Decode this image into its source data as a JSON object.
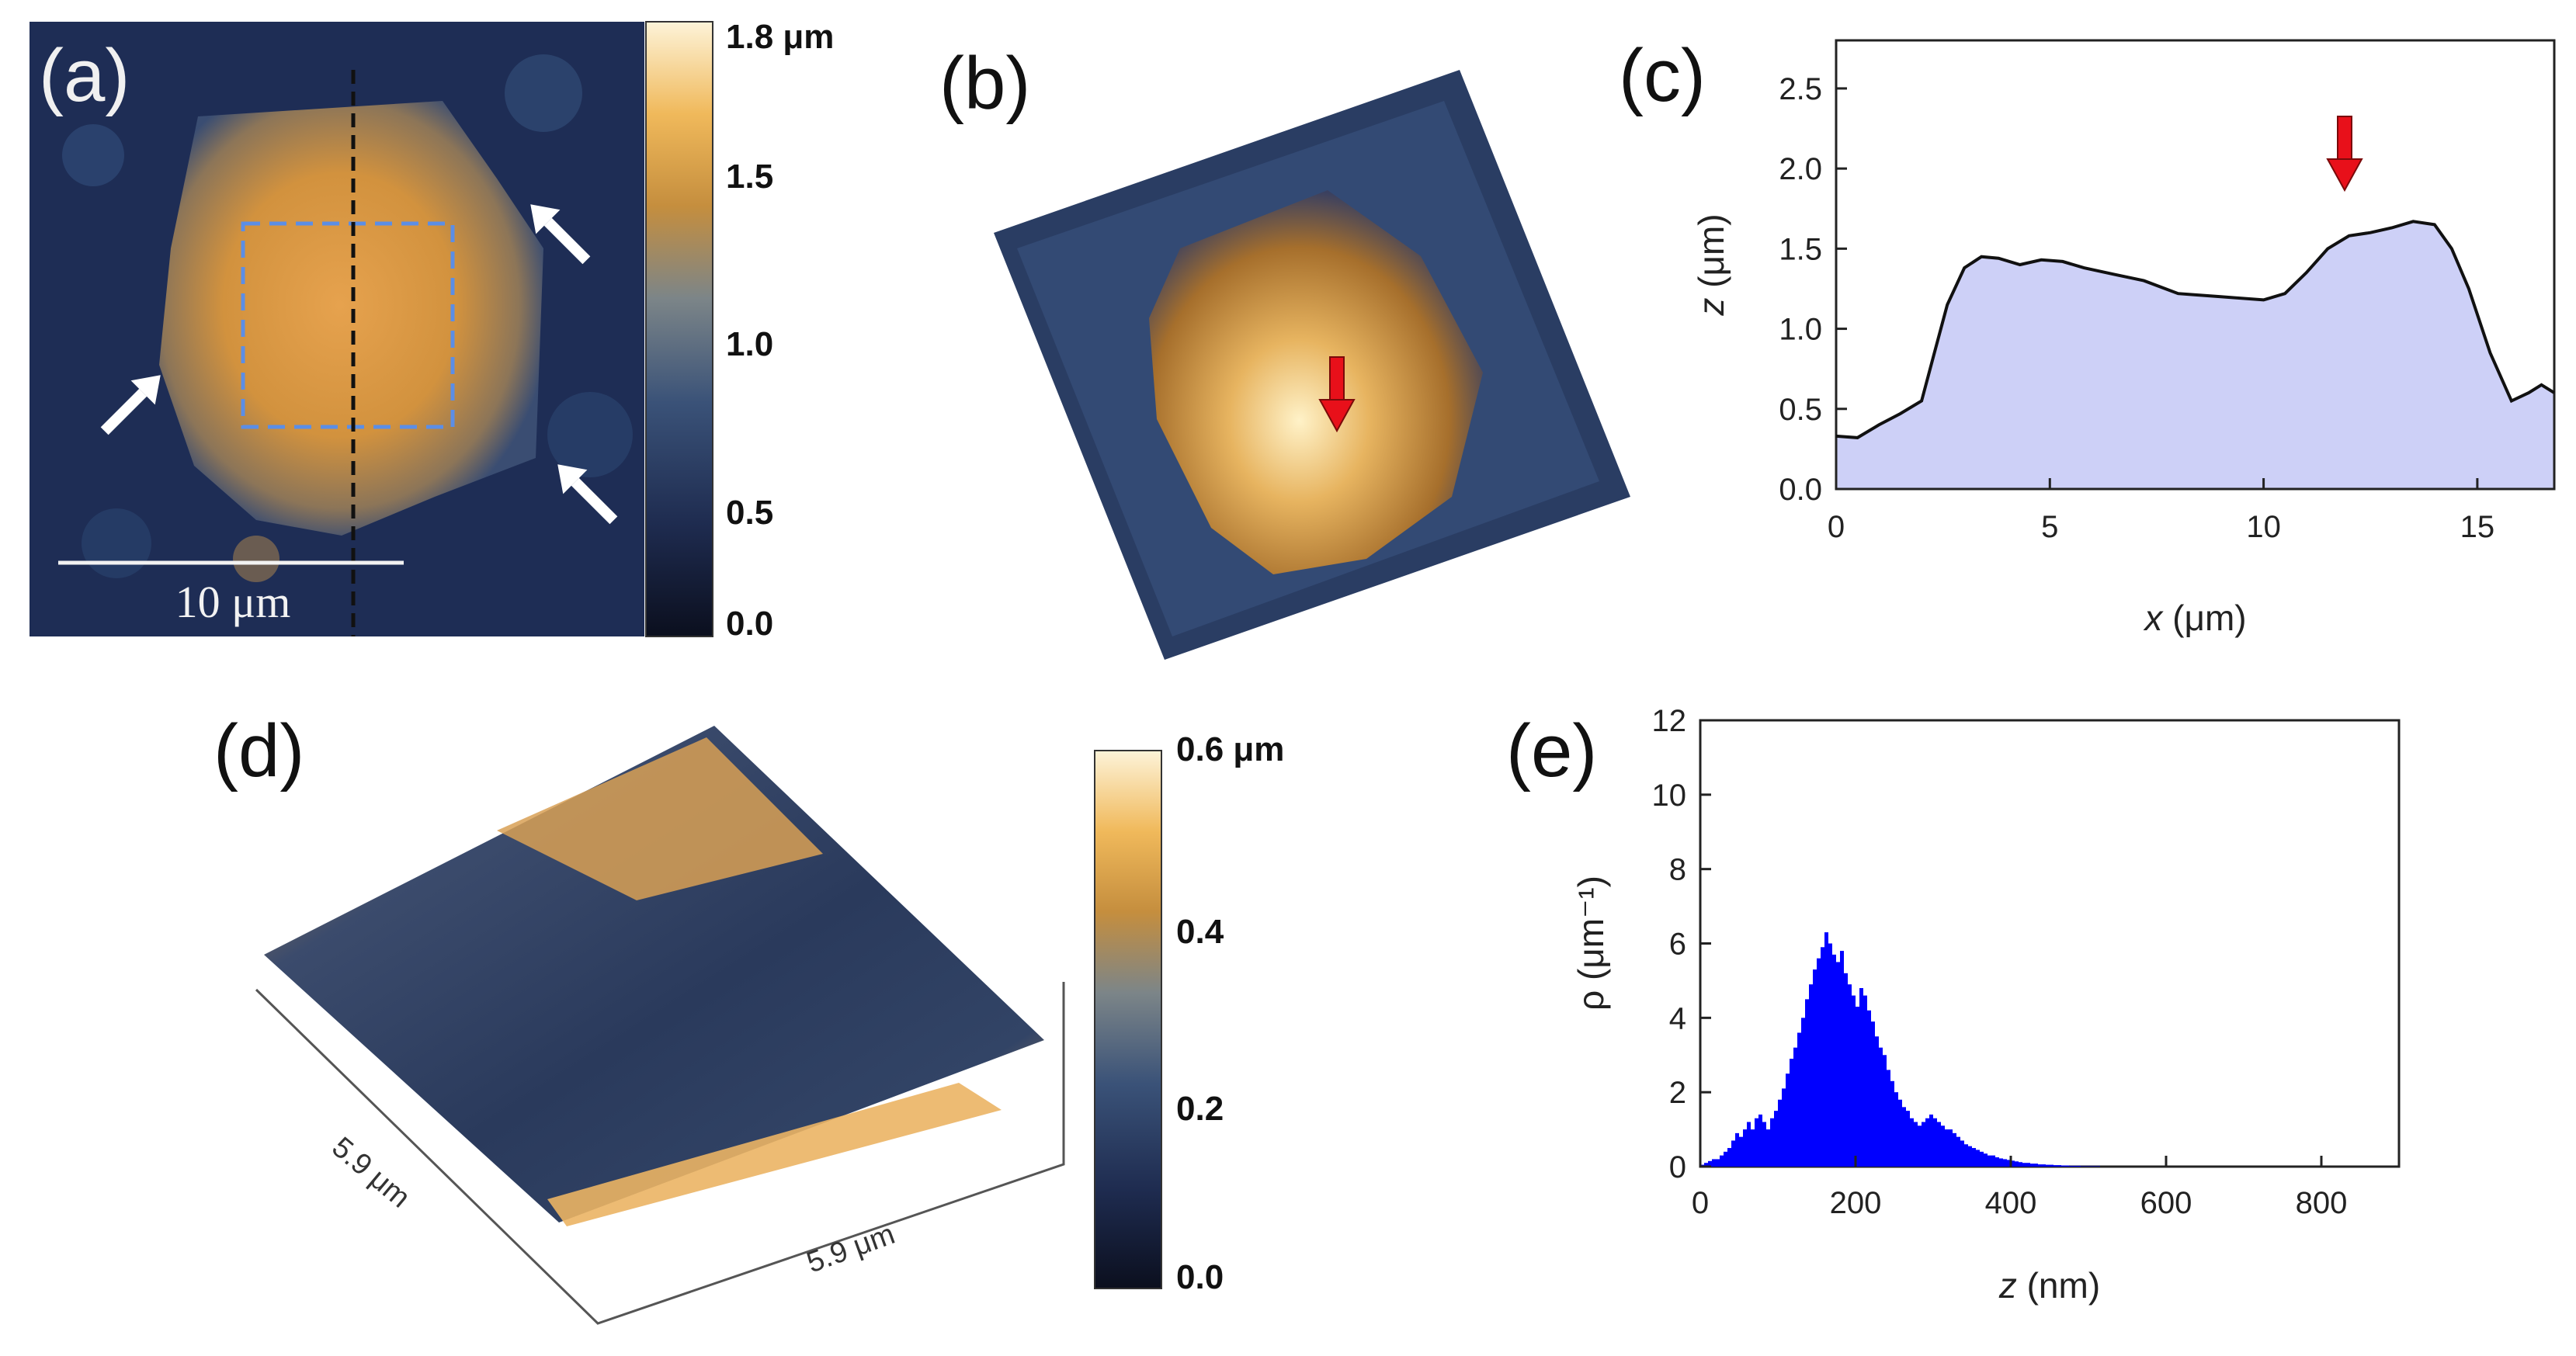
{
  "panels": {
    "a": {
      "letter": "(a)",
      "scale_bar_label": "10 μm",
      "colorbar_ticks": [
        "1.8 μm",
        "1.5",
        "1.0",
        "0.5",
        "0.0"
      ],
      "colormap": [
        "#0b0f1e",
        "#1e2b4f",
        "#3a5278",
        "#7c8588",
        "#c58e3e",
        "#f0b95b",
        "#fdf3d8"
      ],
      "arrow_color": "#ffffff"
    },
    "b": {
      "letter": "(b)",
      "arrow_color": "#e8101a"
    },
    "c": {
      "letter": "(c)",
      "xlabel_italic": "x",
      "xlabel_rest": " (μm)",
      "ylabel_italic": "z",
      "ylabel_rest": " (μm)",
      "xticks": [
        "0",
        "5",
        "10",
        "15"
      ],
      "yticks": [
        "0.0",
        "0.5",
        "1.0",
        "1.5",
        "2.0",
        "2.5"
      ],
      "fill_color": "#cdd0f7",
      "arrow_color": "#e8101a"
    },
    "d": {
      "letter": "(d)",
      "dim_label_left": "5.9 μm",
      "dim_label_right": "5.9 μm",
      "colorbar_ticks": [
        "0.6 μm",
        "0.4",
        "0.2",
        "0.0"
      ]
    },
    "e": {
      "letter": "(e)",
      "xlabel_italic": "z",
      "xlabel_rest": " (nm)",
      "ylabel": "ρ (μm⁻¹)",
      "xticks": [
        "0",
        "200",
        "400",
        "600",
        "800"
      ],
      "yticks": [
        "0",
        "2",
        "4",
        "6",
        "8",
        "10",
        "12"
      ],
      "bar_color": "#0000ff"
    }
  },
  "chart_data": [
    {
      "type": "area",
      "panel": "c",
      "xlabel": "x (μm)",
      "ylabel": "z (μm)",
      "xlim": [
        0,
        16.8
      ],
      "ylim": [
        0,
        2.8
      ],
      "x": [
        0,
        0.5,
        1.0,
        1.5,
        2.0,
        2.3,
        2.6,
        3.0,
        3.4,
        3.8,
        4.3,
        4.8,
        5.3,
        5.8,
        6.5,
        7.2,
        8.0,
        9.0,
        10.0,
        10.5,
        11.0,
        11.5,
        12.0,
        12.5,
        13.0,
        13.5,
        14.0,
        14.4,
        14.8,
        15.3,
        15.8,
        16.2,
        16.5,
        16.8
      ],
      "y": [
        0.33,
        0.32,
        0.4,
        0.47,
        0.55,
        0.85,
        1.15,
        1.38,
        1.45,
        1.44,
        1.4,
        1.43,
        1.42,
        1.38,
        1.34,
        1.3,
        1.22,
        1.2,
        1.18,
        1.22,
        1.35,
        1.5,
        1.58,
        1.6,
        1.63,
        1.67,
        1.65,
        1.5,
        1.25,
        0.85,
        0.55,
        0.6,
        0.65,
        0.6
      ]
    },
    {
      "type": "bar",
      "panel": "e",
      "xlabel": "z (nm)",
      "ylabel": "ρ (μm⁻¹)",
      "xlim": [
        0,
        900
      ],
      "ylim": [
        0,
        12
      ],
      "bin_width_nm": 5,
      "bins": {
        "start": 0,
        "values": [
          0.05,
          0.1,
          0.15,
          0.2,
          0.2,
          0.3,
          0.4,
          0.5,
          0.7,
          0.9,
          0.8,
          1.0,
          1.2,
          1.0,
          1.3,
          1.4,
          1.2,
          1.0,
          1.3,
          1.5,
          1.8,
          2.1,
          2.5,
          2.9,
          3.2,
          3.6,
          4.0,
          4.5,
          4.9,
          5.3,
          5.6,
          5.9,
          6.3,
          6.0,
          5.7,
          5.5,
          5.8,
          5.2,
          4.9,
          4.6,
          4.3,
          4.8,
          4.6,
          4.2,
          3.9,
          3.5,
          3.2,
          3.0,
          2.6,
          2.3,
          2.0,
          1.8,
          1.6,
          1.5,
          1.3,
          1.2,
          1.1,
          1.2,
          1.3,
          1.4,
          1.3,
          1.2,
          1.1,
          1.0,
          1.0,
          0.9,
          0.8,
          0.7,
          0.6,
          0.55,
          0.5,
          0.45,
          0.4,
          0.35,
          0.3,
          0.3,
          0.25,
          0.22,
          0.2,
          0.18,
          0.16,
          0.14,
          0.12,
          0.1,
          0.1,
          0.08,
          0.08,
          0.06,
          0.06,
          0.05,
          0.05,
          0.04,
          0.04,
          0.03,
          0.03,
          0.02,
          0.02,
          0.02,
          0.01,
          0.01,
          0.01,
          0.01,
          0.01,
          0.0,
          0.0,
          0.0,
          0.0,
          0.0,
          0.0,
          0.0,
          0.0,
          0.0,
          0.0,
          0.0,
          0.0,
          0.0,
          0.0,
          0.0,
          0.0,
          0.0
        ]
      }
    }
  ]
}
